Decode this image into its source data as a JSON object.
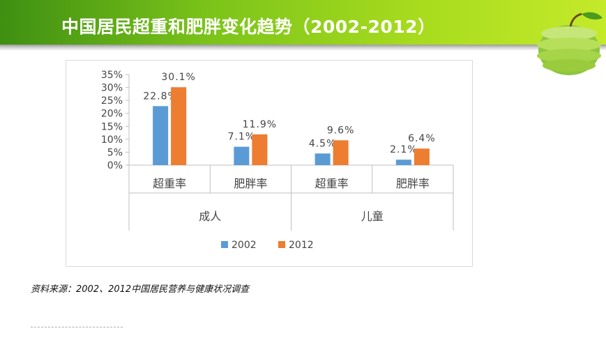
{
  "header": {
    "title": "中国居民超重和肥胖变化趋势（2002-2012）"
  },
  "footer": {
    "source": "资料来源：2002、2012中国居民营养与健康状况调查"
  },
  "colors": {
    "series_2002": "#5b9bd5",
    "series_2012": "#ed7d31",
    "banner_green": "#7cc41a"
  },
  "chart_data": {
    "type": "bar",
    "categories": [
      "超重率",
      "肥胖率",
      "超重率",
      "肥胖率"
    ],
    "groups": [
      {
        "label": "成人",
        "categories": [
          "超重率",
          "肥胖率"
        ]
      },
      {
        "label": "儿童",
        "categories": [
          "超重率",
          "肥胖率"
        ]
      }
    ],
    "series": [
      {
        "name": "2002",
        "values": [
          22.8,
          7.1,
          4.5,
          2.1
        ],
        "labels": [
          "22.8%",
          "7.1%",
          "4.5%",
          "2.1%"
        ]
      },
      {
        "name": "2012",
        "values": [
          30.1,
          11.9,
          9.6,
          6.4
        ],
        "labels": [
          "30.1%",
          "11.9%",
          "9.6%",
          "6.4%"
        ]
      }
    ],
    "yticks": [
      "0%",
      "5%",
      "10%",
      "15%",
      "20%",
      "25%",
      "30%",
      "35%"
    ],
    "ylim": [
      0,
      35
    ],
    "legend": "bottom",
    "grid": false
  }
}
